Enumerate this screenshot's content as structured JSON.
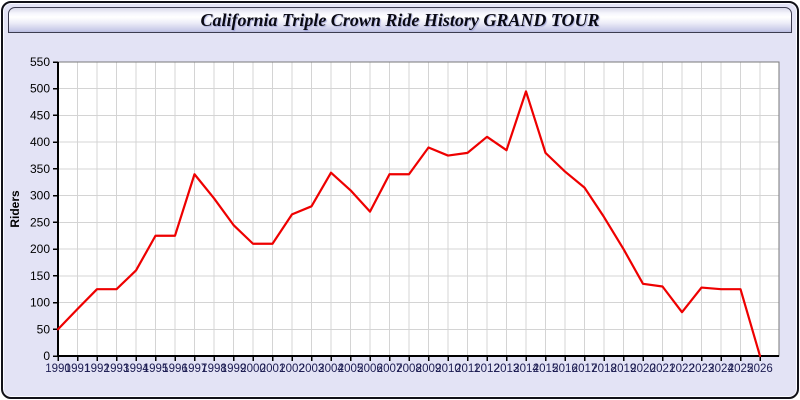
{
  "window": {
    "title": "California Triple Crown Ride History GRAND TOUR"
  },
  "chart_data": {
    "type": "line",
    "title": "California Triple Crown Ride History GRAND TOUR",
    "xlabel": "",
    "ylabel": "Riders",
    "x": [
      1990,
      1991,
      1992,
      1993,
      1994,
      1995,
      1996,
      1997,
      1998,
      1999,
      2000,
      2001,
      2002,
      2003,
      2004,
      2005,
      2006,
      2007,
      2008,
      2009,
      2010,
      2011,
      2012,
      2013,
      2014,
      2015,
      2016,
      2017,
      2018,
      2019,
      2020,
      2021,
      2022,
      2023,
      2024,
      2025,
      2026
    ],
    "series": [
      {
        "name": "Riders",
        "values": [
          50,
          88,
          125,
          125,
          160,
          225,
          225,
          340,
          295,
          245,
          210,
          210,
          265,
          280,
          343,
          310,
          270,
          340,
          340,
          390,
          375,
          380,
          410,
          385,
          495,
          380,
          345,
          315,
          260,
          200,
          135,
          130,
          82,
          128,
          125,
          125,
          0
        ]
      }
    ],
    "ylim": [
      0,
      550
    ],
    "ytick_step": 50,
    "grid": true,
    "legend": "none",
    "colors": {
      "line": "#ee0000",
      "grid": "#d4d4d4",
      "plot_border": "#7a7a7a",
      "axis": "#000000",
      "plot_background": "#ffffff",
      "x_tick_label": "#1c1c52",
      "y_tick_label": "#000000"
    }
  }
}
